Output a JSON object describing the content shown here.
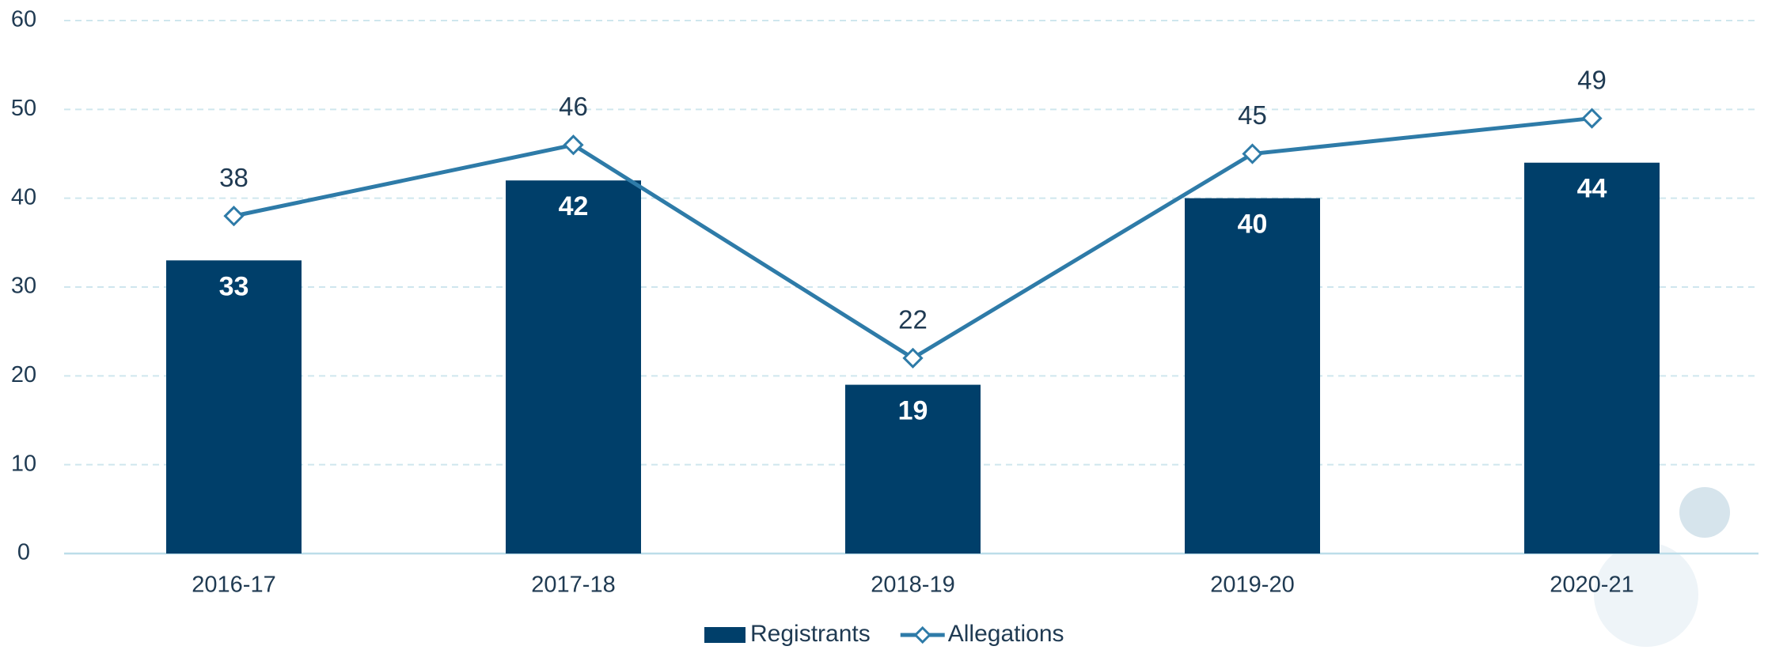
{
  "chart_data": {
    "type": "bar_line",
    "categories": [
      "2016-17",
      "2017-18",
      "2018-19",
      "2019-20",
      "2020-21"
    ],
    "series": [
      {
        "name": "Registrants",
        "type": "bar",
        "color": "#003f6a",
        "values": [
          33,
          42,
          19,
          40,
          44
        ]
      },
      {
        "name": "Allegations",
        "type": "line",
        "color": "#2e7ba8",
        "values": [
          38,
          46,
          22,
          45,
          49
        ]
      }
    ],
    "ylim": [
      0,
      60
    ],
    "yticks": [
      0,
      10,
      20,
      30,
      40,
      50,
      60
    ],
    "grid": true,
    "legend": "bottom"
  }
}
